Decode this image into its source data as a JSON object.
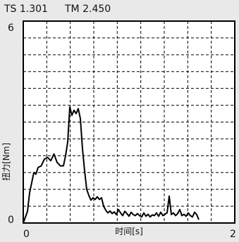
{
  "header": {
    "ts_text": "TS 1.301",
    "tm_text": "TM 2.450"
  },
  "chart_data": {
    "type": "line",
    "xlabel": "时间[s]",
    "ylabel": "扭力[Nm]",
    "xlim": [
      0,
      2
    ],
    "ylim": [
      0,
      6
    ],
    "x_ticks": [
      "0",
      "2"
    ],
    "y_ticks": [
      "0",
      "6"
    ],
    "grid": true,
    "line_color": "#000000",
    "series": [
      {
        "x": [
          0.0,
          0.04,
          0.06,
          0.08,
          0.1,
          0.12,
          0.14,
          0.17,
          0.2,
          0.23,
          0.26,
          0.29,
          0.32,
          0.35,
          0.38,
          0.4,
          0.42,
          0.44,
          0.46,
          0.48,
          0.5,
          0.52,
          0.54,
          0.56,
          0.58,
          0.6,
          0.62,
          0.64,
          0.66,
          0.68,
          0.7,
          0.72,
          0.74,
          0.76,
          0.78,
          0.8,
          0.82,
          0.84,
          0.86,
          0.88,
          0.9,
          0.92,
          0.94,
          0.96,
          0.98,
          1.0,
          1.02,
          1.04,
          1.06,
          1.08,
          1.1,
          1.12,
          1.14,
          1.16,
          1.18,
          1.2,
          1.22,
          1.24,
          1.26,
          1.28,
          1.3,
          1.32,
          1.34,
          1.36,
          1.38,
          1.4,
          1.42,
          1.44,
          1.46,
          1.48,
          1.5,
          1.52,
          1.54,
          1.56,
          1.58,
          1.6,
          1.62,
          1.64,
          1.66
        ],
        "y": [
          0.0,
          0.35,
          0.9,
          1.2,
          1.5,
          1.45,
          1.65,
          1.7,
          1.9,
          1.95,
          1.85,
          2.05,
          1.8,
          1.7,
          1.7,
          2.0,
          2.4,
          3.45,
          3.2,
          3.35,
          3.25,
          3.4,
          3.1,
          2.2,
          1.55,
          1.0,
          0.82,
          0.68,
          0.75,
          0.7,
          0.78,
          0.7,
          0.75,
          0.5,
          0.38,
          0.3,
          0.36,
          0.28,
          0.33,
          0.25,
          0.4,
          0.3,
          0.22,
          0.35,
          0.28,
          0.2,
          0.32,
          0.25,
          0.22,
          0.28,
          0.22,
          0.18,
          0.3,
          0.2,
          0.26,
          0.18,
          0.24,
          0.22,
          0.3,
          0.2,
          0.32,
          0.22,
          0.26,
          0.3,
          0.8,
          0.25,
          0.3,
          0.22,
          0.28,
          0.4,
          0.22,
          0.26,
          0.2,
          0.3,
          0.22,
          0.18,
          0.32,
          0.25,
          0.1
        ]
      }
    ]
  }
}
